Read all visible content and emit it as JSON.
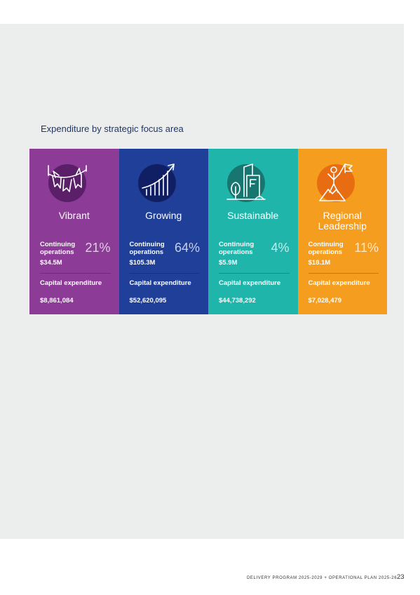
{
  "section_title": "Expenditure by strategic focus area",
  "cards": [
    {
      "name": "Vibrant",
      "icon": "bunting-icon",
      "bg_color": "#8c3b96",
      "icon_circle_color": "#5b1f6a",
      "continuing_label": "Continuing operations",
      "continuing_percent": "21%",
      "continuing_value": "$34.5M",
      "capital_label": "Capital expenditure",
      "capital_value": "$8,861,084"
    },
    {
      "name": "Growing",
      "icon": "growth-chart-icon",
      "bg_color": "#203f99",
      "icon_circle_color": "#101f63",
      "continuing_label": "Continuing operations",
      "continuing_percent": "64%",
      "continuing_value": "$105.3M",
      "capital_label": "Capital expenditure",
      "capital_value": "$52,620,095"
    },
    {
      "name": "Sustainable",
      "icon": "tree-building-icon",
      "bg_color": "#1fb5aa",
      "icon_circle_color": "#17766f",
      "continuing_label": "Continuing operations",
      "continuing_percent": "4%",
      "continuing_value": "$5.9M",
      "capital_label": "Capital expenditure",
      "capital_value": "$44,738,292"
    },
    {
      "name": "Regional Leadership",
      "icon": "summit-flag-icon",
      "bg_color": "#f59d1f",
      "icon_circle_color": "#e86d12",
      "continuing_label": "Continuing operations",
      "continuing_percent": "11%",
      "continuing_value": "$18.1M",
      "capital_label": "Capital expenditure",
      "capital_value": "$7,028,479"
    }
  ],
  "footer": {
    "text": "DELIVERY PROGRAM 2025-2029 + OPERATIONAL PLAN 2025-26",
    "page_number": "23"
  }
}
